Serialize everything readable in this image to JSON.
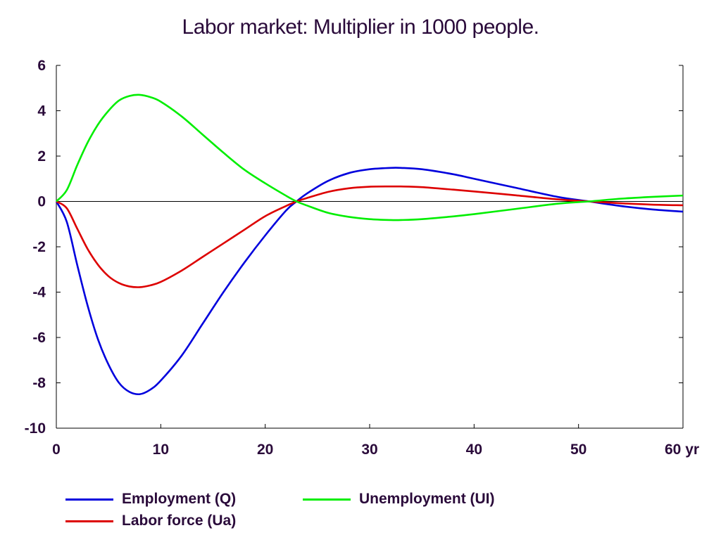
{
  "chart_data": {
    "type": "line",
    "title": "Labor market: Multiplier in 1000 people.",
    "xlabel": "",
    "ylabel": "",
    "xlim": [
      0,
      60
    ],
    "ylim": [
      -10,
      6
    ],
    "x_ticks": [
      0,
      10,
      20,
      30,
      40,
      50,
      60
    ],
    "x_tick_labels": [
      "0",
      "10",
      "20",
      "30",
      "40",
      "50",
      "60 yr"
    ],
    "y_ticks": [
      6,
      4,
      2,
      0,
      -2,
      -4,
      -6,
      -8,
      -10
    ],
    "y_tick_labels": [
      "6",
      "4",
      "2",
      "0",
      "-2",
      "-4",
      "-6",
      "-8",
      "-10"
    ],
    "grid": false,
    "zero_line": true,
    "legend_position": "bottom",
    "x": [
      0,
      1,
      2,
      3,
      4,
      5,
      6,
      7,
      8,
      9,
      10,
      12,
      14,
      16,
      18,
      20,
      22,
      23,
      24,
      26,
      28,
      30,
      32,
      33,
      35,
      38,
      40,
      44,
      48,
      51,
      54,
      57,
      60
    ],
    "series": [
      {
        "name": "Employment (Q)",
        "color": "#0000dd",
        "values": [
          0,
          -0.9,
          -2.8,
          -4.6,
          -6.1,
          -7.2,
          -8.0,
          -8.4,
          -8.5,
          -8.3,
          -7.9,
          -6.8,
          -5.4,
          -4.0,
          -2.7,
          -1.5,
          -0.4,
          0.0,
          0.35,
          0.9,
          1.25,
          1.42,
          1.48,
          1.48,
          1.42,
          1.2,
          1.0,
          0.6,
          0.2,
          0.0,
          -0.2,
          -0.35,
          -0.45
        ]
      },
      {
        "name": "Labor force (Ua)",
        "color": "#dd0000",
        "values": [
          0,
          -0.3,
          -1.2,
          -2.1,
          -2.8,
          -3.3,
          -3.6,
          -3.75,
          -3.78,
          -3.7,
          -3.55,
          -3.05,
          -2.45,
          -1.85,
          -1.25,
          -0.65,
          -0.2,
          0.0,
          0.15,
          0.42,
          0.58,
          0.65,
          0.66,
          0.66,
          0.63,
          0.52,
          0.44,
          0.27,
          0.09,
          0.0,
          -0.08,
          -0.14,
          -0.17
        ]
      },
      {
        "name": "Unemployment (UI)",
        "color": "#00ee00",
        "values": [
          0,
          0.5,
          1.6,
          2.6,
          3.4,
          4.0,
          4.45,
          4.65,
          4.7,
          4.6,
          4.4,
          3.75,
          2.95,
          2.15,
          1.4,
          0.8,
          0.25,
          0.0,
          -0.18,
          -0.5,
          -0.68,
          -0.78,
          -0.82,
          -0.82,
          -0.78,
          -0.66,
          -0.56,
          -0.33,
          -0.1,
          0.0,
          0.12,
          0.2,
          0.26
        ]
      }
    ]
  },
  "legend": {
    "items": [
      {
        "label": "Employment (Q)",
        "color": "#0000dd"
      },
      {
        "label": "Labor force (Ua)",
        "color": "#dd0000"
      },
      {
        "label": "Unemployment (UI)",
        "color": "#00ee00"
      }
    ]
  }
}
